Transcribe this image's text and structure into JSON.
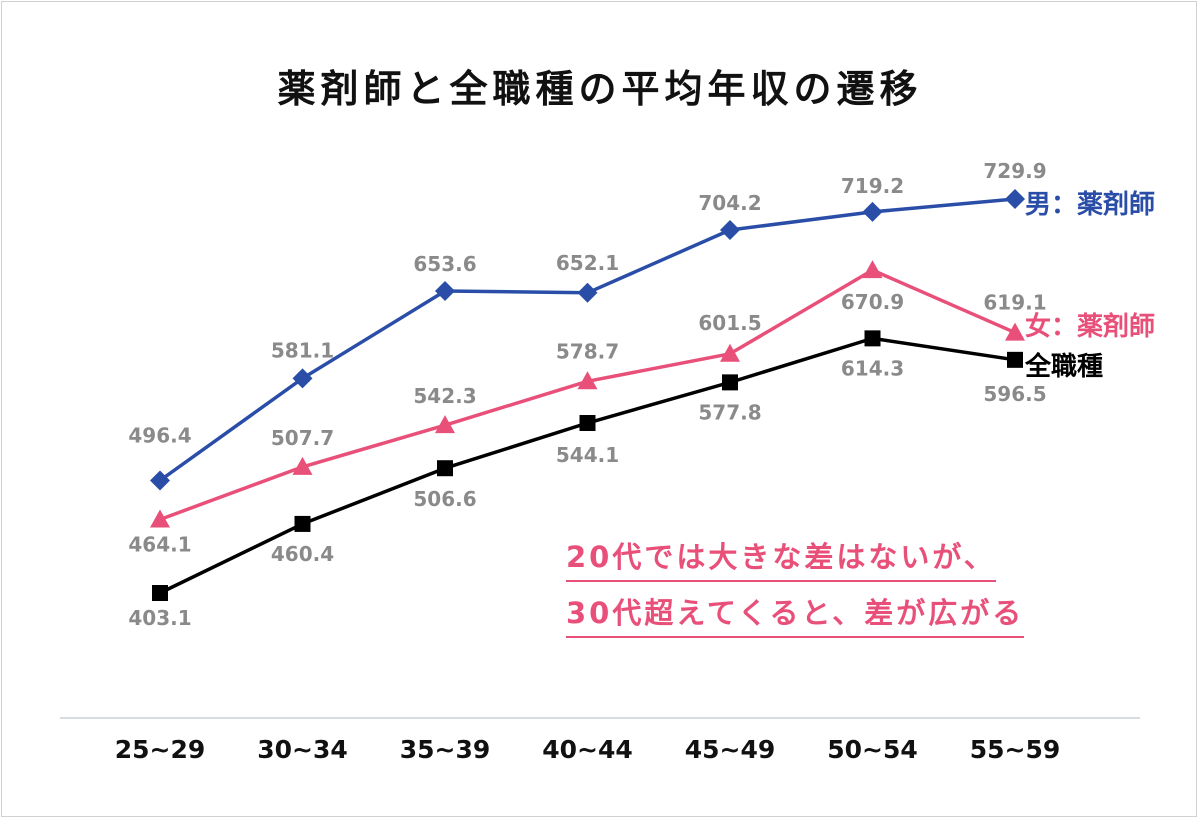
{
  "title": "薬剤師と全職種の平均年収の遷移",
  "note": {
    "line1": "20代では大きな差はないが、",
    "line2": "30代超えてくると、差が広がる"
  },
  "colors": {
    "male": "#2a4ea8",
    "female": "#e8507a",
    "all": "#000000",
    "label": "#8a8a8a",
    "axis": "#d5dde3"
  },
  "chart_data": {
    "type": "line",
    "title": "薬剤師と全職種の平均年収の遷移",
    "xlabel": "",
    "ylabel": "",
    "categories": [
      "25~29",
      "30~34",
      "35~39",
      "40~44",
      "45~49",
      "50~54",
      "55~59"
    ],
    "ylim": [
      360,
      780
    ],
    "grid": false,
    "series": [
      {
        "name": "男：薬剤師",
        "marker": "diamond",
        "color": "#2a4ea8",
        "values": [
          496.4,
          581.1,
          653.6,
          652.1,
          704.2,
          719.2,
          729.9
        ]
      },
      {
        "name": "女：薬剤師",
        "marker": "triangle",
        "color": "#e8507a",
        "values": [
          464.1,
          507.7,
          542.3,
          578.7,
          601.5,
          670.9,
          619.1
        ]
      },
      {
        "name": "全職種",
        "marker": "square",
        "color": "#000000",
        "values": [
          403.1,
          460.4,
          506.6,
          544.1,
          577.8,
          614.3,
          596.5
        ]
      }
    ]
  }
}
